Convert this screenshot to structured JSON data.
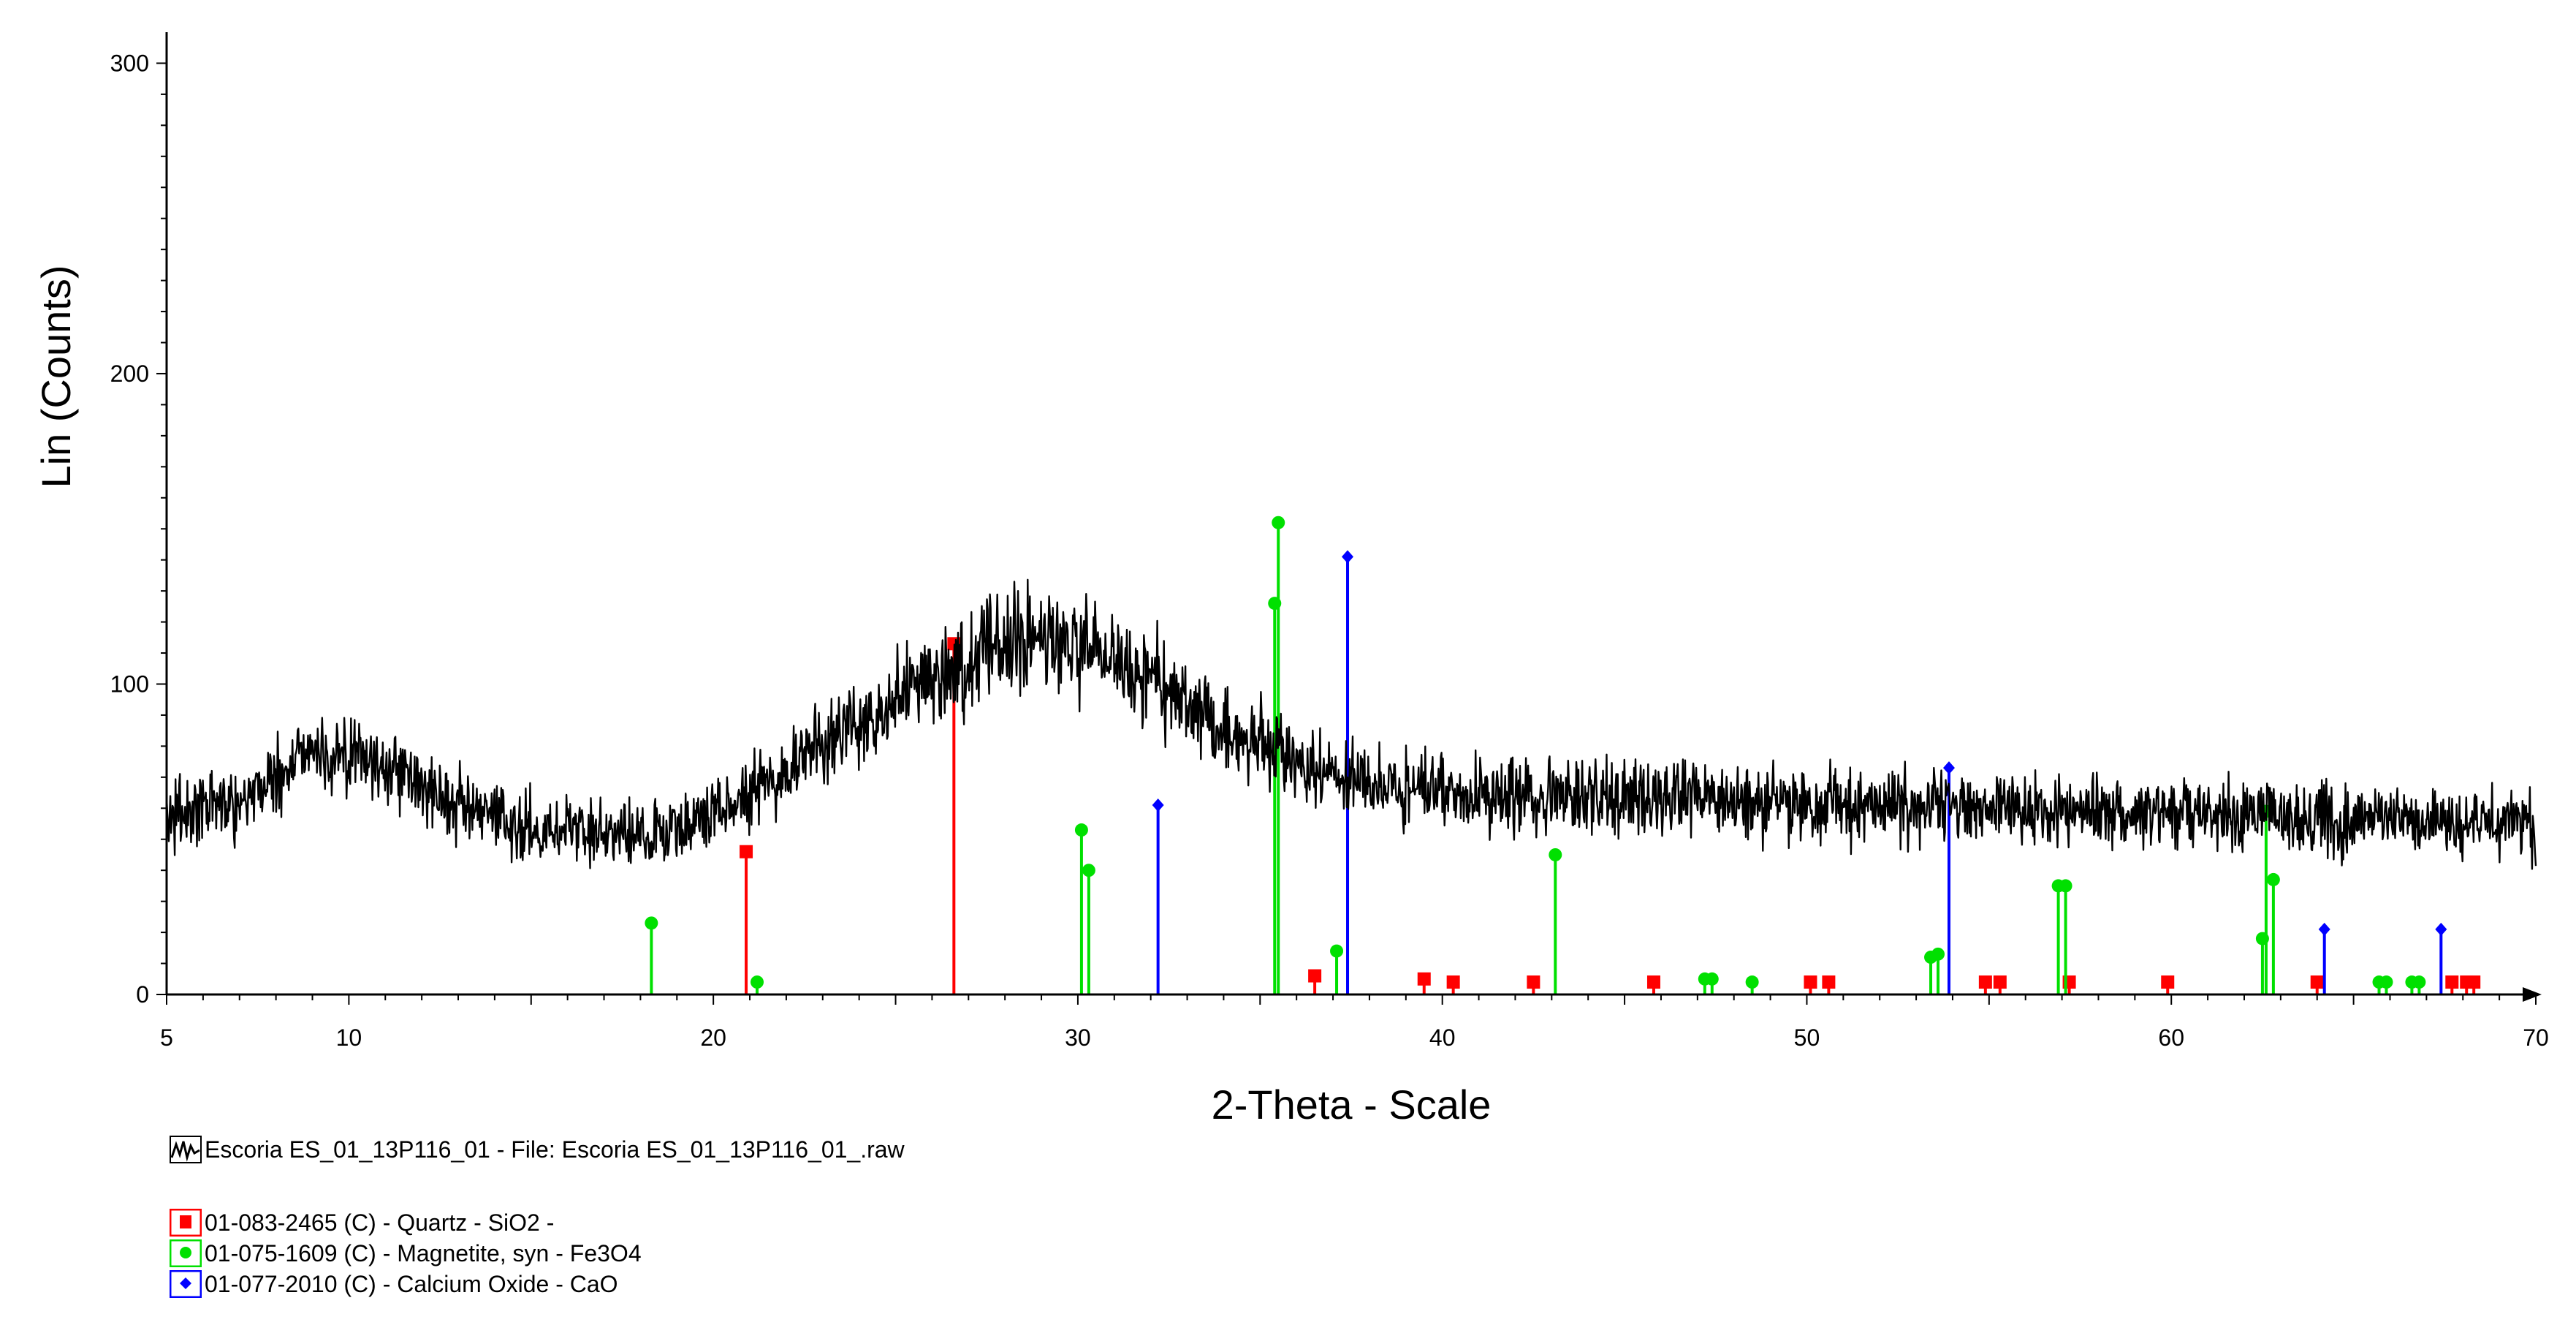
{
  "chart_data": {
    "type": "line",
    "xlabel": "2-Theta - Scale",
    "ylabel": "Lin (Counts)",
    "xlim": [
      5,
      70
    ],
    "ylim": [
      0,
      310
    ],
    "x_ticks": [
      5,
      10,
      20,
      30,
      40,
      50,
      60,
      70
    ],
    "y_ticks": [
      0,
      100,
      200,
      300
    ],
    "grid": false,
    "legend_position": "bottom-left",
    "pattern": {
      "name": "Escoria ES_01_13P116_01 - File: Escoria ES_01_13P116_01_.raw",
      "color": "#000000",
      "x": [
        5,
        6,
        7,
        8,
        8.5,
        8.8,
        9,
        10,
        11,
        12,
        13,
        14,
        15,
        16,
        17,
        18,
        19,
        20,
        21,
        22,
        23,
        24,
        25,
        26,
        27,
        27.5,
        28,
        29,
        30,
        31,
        32,
        33,
        34,
        35,
        36,
        37,
        38,
        39,
        40,
        41,
        42,
        43,
        44,
        45,
        46,
        47,
        48,
        49,
        50,
        51,
        52,
        53,
        54,
        55,
        56,
        57,
        58,
        59,
        60,
        61,
        62,
        63,
        64,
        65,
        66,
        67,
        68,
        69,
        70
      ],
      "y": [
        57,
        60,
        63,
        70,
        74,
        82,
        78,
        76,
        74,
        68,
        60,
        56,
        54,
        53,
        52,
        52,
        53,
        58,
        66,
        73,
        80,
        88,
        96,
        103,
        108,
        114,
        113,
        113,
        112,
        108,
        102,
        94,
        86,
        79,
        74,
        70,
        68,
        66,
        65,
        64,
        64,
        64,
        64,
        63,
        63,
        63,
        62,
        62,
        61,
        61,
        61,
        60,
        60,
        60,
        59,
        59,
        59,
        58,
        58,
        58,
        58,
        57,
        57,
        56,
        56,
        55,
        55,
        55,
        55
      ]
    },
    "phases": [
      {
        "name": "01-083-2465 (C) - Quartz - SiO2 -",
        "color": "#ff0000",
        "marker": "square",
        "x": [
          20.9,
          26.6,
          36.5,
          39.5,
          40.3,
          42.5,
          45.8,
          50.1,
          50.6,
          54.9,
          55.3,
          57.2,
          59.9,
          64.0,
          67.7,
          68.1,
          68.3
        ],
        "y": [
          46,
          113,
          6,
          5,
          4,
          4,
          4,
          4,
          4,
          4,
          4,
          4,
          4,
          4,
          4,
          4,
          4
        ]
      },
      {
        "name": "01-075-1609 (C) - Magnetite, syn - Fe3O4",
        "color": "#00e000",
        "marker": "circle",
        "x": [
          18.3,
          21.2,
          30.1,
          30.3,
          35.4,
          35.5,
          37.1,
          43.1,
          47.2,
          47.4,
          48.5,
          53.4,
          53.6,
          56.9,
          57.1,
          62.5,
          62.6,
          62.8,
          65.7,
          65.9,
          66.6,
          66.8
        ],
        "y": [
          23,
          4,
          53,
          40,
          126,
          152,
          14,
          45,
          5,
          5,
          4,
          12,
          13,
          35,
          35,
          18,
          59,
          37,
          4,
          4,
          4,
          4
        ]
      },
      {
        "name": "01-077-2010 (C) - Calcium Oxide - CaO",
        "color": "#0000ff",
        "marker": "diamond",
        "x": [
          32.2,
          37.4,
          53.9,
          64.2,
          67.4
        ],
        "y": [
          61,
          141,
          73,
          21,
          21
        ]
      }
    ]
  }
}
